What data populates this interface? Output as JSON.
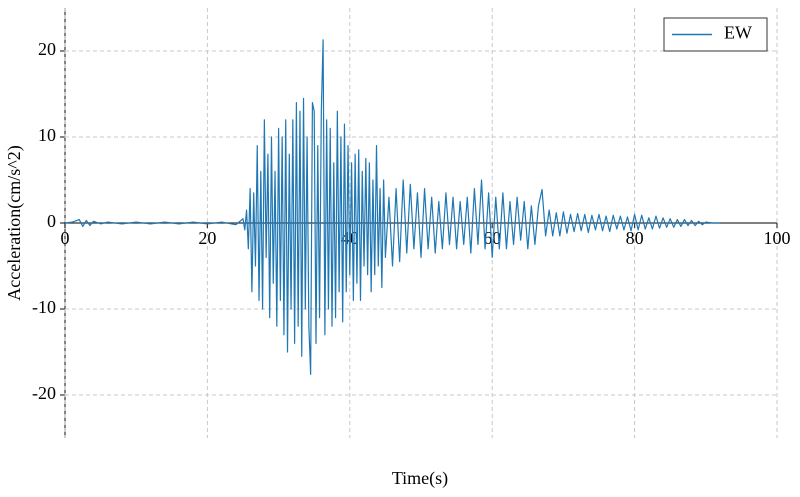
{
  "chart_data": {
    "type": "line",
    "x_label": "Time(s)",
    "y_label": "Acceleration(cm/s^2)",
    "xlim": [
      0,
      100
    ],
    "xticks": [
      0,
      20,
      40,
      60,
      80,
      100
    ],
    "ylim": [
      -25,
      25
    ],
    "yticks": [
      -20,
      -10,
      0,
      10,
      20
    ],
    "grid": true,
    "legend": "upper right",
    "x": [
      0,
      1,
      2,
      2.5,
      3,
      3.5,
      4,
      5,
      6,
      8,
      10,
      12,
      14,
      16,
      18,
      20,
      22,
      24,
      25,
      25.25,
      25.5,
      25.75,
      26,
      26.25,
      26.5,
      26.75,
      27,
      27.25,
      27.5,
      27.75,
      28,
      28.25,
      28.5,
      28.75,
      29,
      29.25,
      29.5,
      29.75,
      30,
      30.25,
      30.5,
      30.75,
      31,
      31.25,
      31.5,
      31.75,
      32,
      32.25,
      32.5,
      32.75,
      33,
      33.25,
      33.5,
      33.75,
      34,
      34.25,
      34.5,
      34.75,
      35,
      35.25,
      35.5,
      35.75,
      36,
      36.25,
      36.5,
      36.75,
      37,
      37.25,
      37.5,
      37.75,
      38,
      38.25,
      38.5,
      38.75,
      39,
      39.25,
      39.5,
      39.75,
      40,
      40.25,
      40.5,
      40.75,
      41,
      41.25,
      41.5,
      41.75,
      42,
      42.25,
      42.5,
      42.75,
      43,
      43.25,
      43.5,
      43.75,
      44,
      44.25,
      44.5,
      44.75,
      45,
      45.5,
      46,
      46.5,
      47,
      47.5,
      48,
      48.5,
      49,
      49.5,
      50,
      50.5,
      51,
      51.5,
      52,
      52.5,
      53,
      53.5,
      54,
      54.5,
      55,
      55.5,
      56,
      56.5,
      57,
      57.5,
      58,
      58.5,
      59,
      59.5,
      60,
      60.5,
      61,
      61.5,
      62,
      62.5,
      63,
      63.5,
      64,
      64.5,
      65,
      65.5,
      66,
      66.5,
      67,
      67.5,
      68,
      68.5,
      69,
      69.5,
      70,
      70.5,
      71,
      71.5,
      72,
      72.5,
      73,
      73.5,
      74,
      74.5,
      75,
      75.5,
      76,
      76.5,
      77,
      77.5,
      78,
      78.5,
      79,
      79.5,
      80,
      80.5,
      81,
      81.5,
      82,
      82.5,
      83,
      83.5,
      84,
      84.5,
      85,
      85.5,
      86,
      86.5,
      87,
      87.5,
      88,
      88.5,
      89,
      89.5,
      90,
      91,
      92
    ],
    "series": [
      {
        "name": "EW",
        "color": "#1f77b4",
        "values": [
          0,
          0.1,
          0.4,
          -0.4,
          0.3,
          -0.3,
          0.2,
          -0.1,
          0.1,
          -0.1,
          0.1,
          -0.1,
          0.1,
          -0.1,
          0.1,
          -0.1,
          0.1,
          -0.2,
          0.5,
          -0.8,
          1.5,
          -3,
          4,
          -8,
          3.5,
          -5,
          9,
          -9,
          6,
          -10,
          12,
          -4,
          8,
          -11,
          10,
          -7,
          6,
          -12,
          11,
          -9,
          10,
          -13,
          12,
          -15,
          8,
          -10,
          12,
          -14,
          14,
          -12,
          13,
          -15.5,
          14.5,
          -10,
          10,
          -12,
          -17.6,
          14,
          13,
          -14,
          9,
          -11,
          13,
          21.3,
          -13,
          12,
          -10,
          11,
          -12,
          7,
          -11,
          13,
          -8,
          10,
          -11.5,
          11.5,
          -8,
          9,
          -6,
          7,
          -9,
          8,
          -7,
          8.5,
          -9,
          6,
          -5,
          7.5,
          -6,
          7,
          -8,
          5,
          -6,
          9,
          -5,
          4,
          -7.5,
          5,
          -4,
          3,
          -5,
          4,
          -4.5,
          5,
          -3.5,
          4.5,
          -3,
          3.5,
          -4,
          4,
          -3,
          3,
          -3.5,
          2.5,
          -3,
          3.5,
          -2.5,
          3,
          -3,
          2.5,
          -2.5,
          3,
          -3.5,
          4,
          -2.5,
          5,
          -3,
          3.5,
          -4,
          3,
          -3,
          3.5,
          -3,
          2.5,
          -2.5,
          3,
          -2,
          2.5,
          -3,
          2,
          -2.5,
          2,
          3.9,
          -1.5,
          1.5,
          -1.5,
          1.2,
          -1.5,
          1.3,
          -1.2,
          1,
          -1,
          1.1,
          -0.9,
          1,
          -1.1,
          0.9,
          -0.8,
          1,
          -0.9,
          0.8,
          -1,
          0.9,
          -0.7,
          0.8,
          -0.8,
          0.7,
          -0.9,
          1,
          -0.8,
          0.9,
          -0.7,
          0.6,
          -0.7,
          0.8,
          -0.6,
          0.6,
          -0.5,
          0.5,
          -0.5,
          0.4,
          -0.4,
          0.4,
          -0.3,
          0.3,
          -0.3,
          0.2,
          -0.2,
          0.1,
          0,
          0
        ]
      }
    ]
  }
}
